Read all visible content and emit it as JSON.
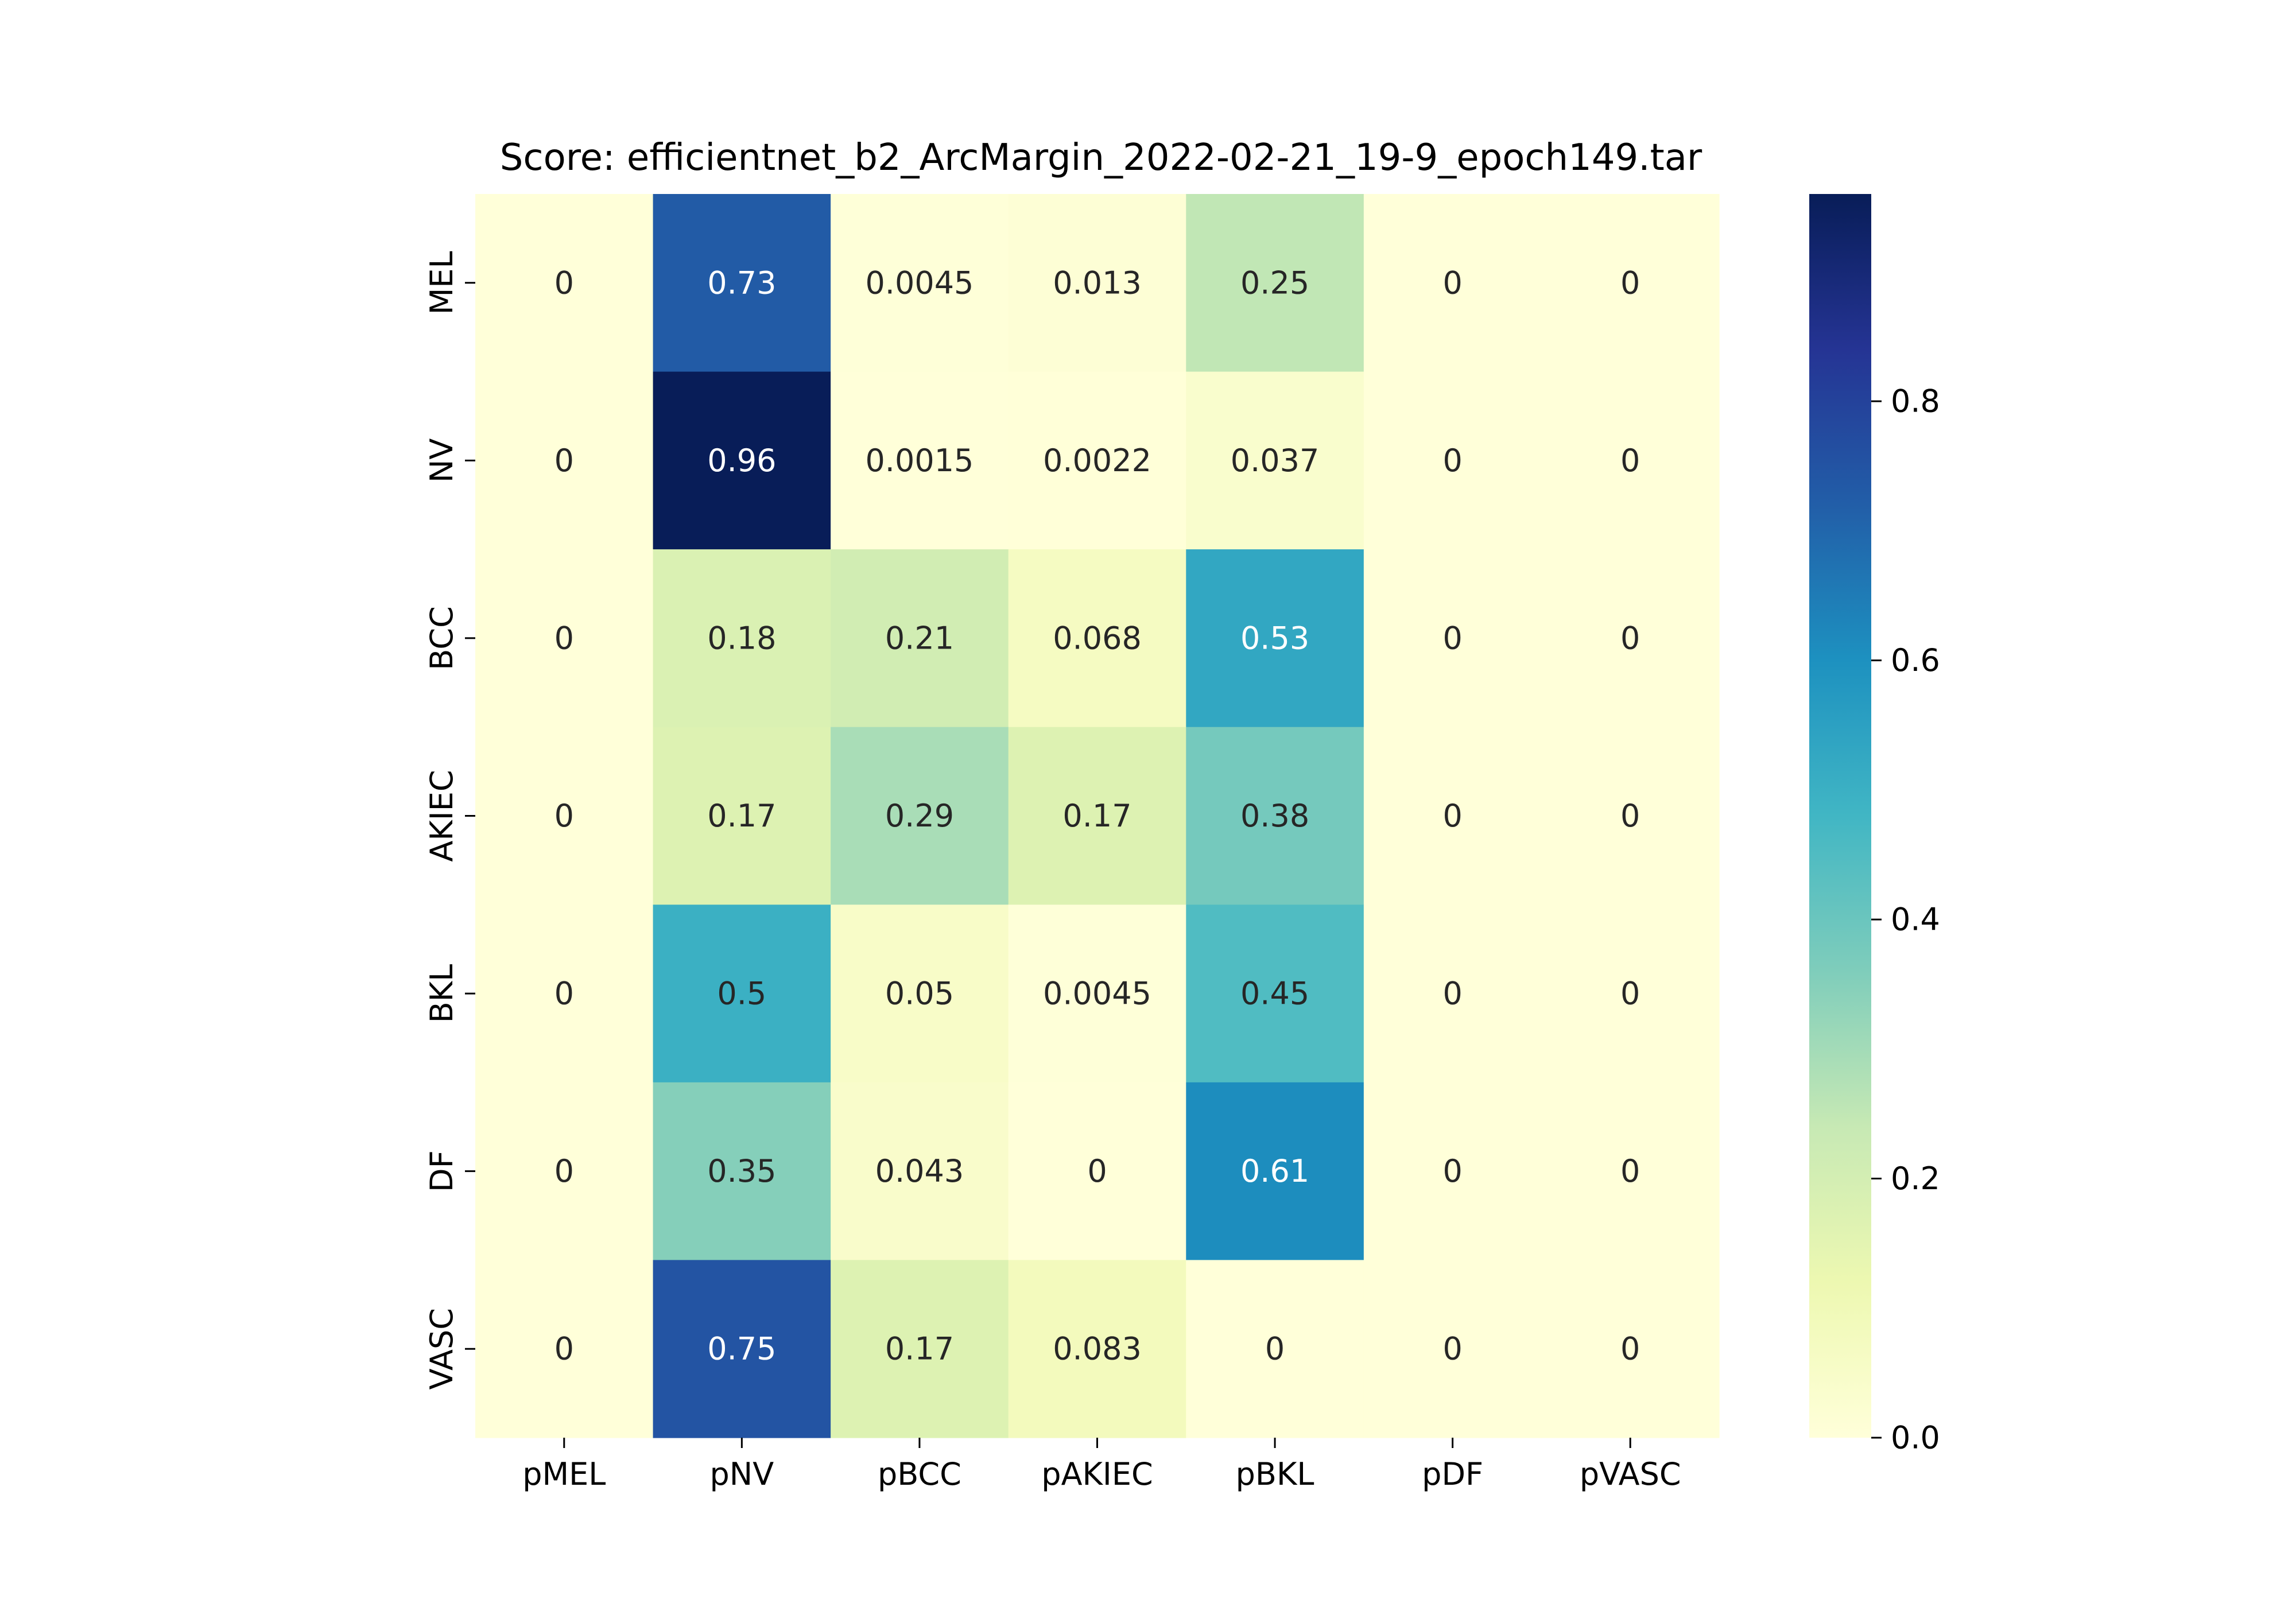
{
  "chart_data": {
    "type": "heatmap",
    "title": "Score: efficientnet_b2_ArcMargin_2022-02-21_19-9_epoch149.tar",
    "xlabel": "",
    "ylabel": "",
    "x_categories": [
      "pMEL",
      "pNV",
      "pBCC",
      "pAKIEC",
      "pBKL",
      "pDF",
      "pVASC"
    ],
    "y_categories": [
      "MEL",
      "NV",
      "BCC",
      "AKIEC",
      "BKL",
      "DF",
      "VASC"
    ],
    "cells": [
      [
        "0",
        "0.73",
        "0.0045",
        "0.013",
        "0.25",
        "0",
        "0"
      ],
      [
        "0",
        "0.96",
        "0.0015",
        "0.0022",
        "0.037",
        "0",
        "0"
      ],
      [
        "0",
        "0.18",
        "0.21",
        "0.068",
        "0.53",
        "0",
        "0"
      ],
      [
        "0",
        "0.17",
        "0.29",
        "0.17",
        "0.38",
        "0",
        "0"
      ],
      [
        "0",
        "0.5",
        "0.05",
        "0.0045",
        "0.45",
        "0",
        "0"
      ],
      [
        "0",
        "0.35",
        "0.043",
        "0",
        "0.61",
        "0",
        "0"
      ],
      [
        "0",
        "0.75",
        "0.17",
        "0.083",
        "0",
        "0",
        "0"
      ]
    ],
    "colormap": "YlGnBu",
    "colorbar": {
      "range": [
        0,
        0.96
      ],
      "ticks": [
        "0.0",
        "0.2",
        "0.4",
        "0.6",
        "0.8"
      ]
    },
    "grid": false,
    "legend": "colorbar-right"
  }
}
